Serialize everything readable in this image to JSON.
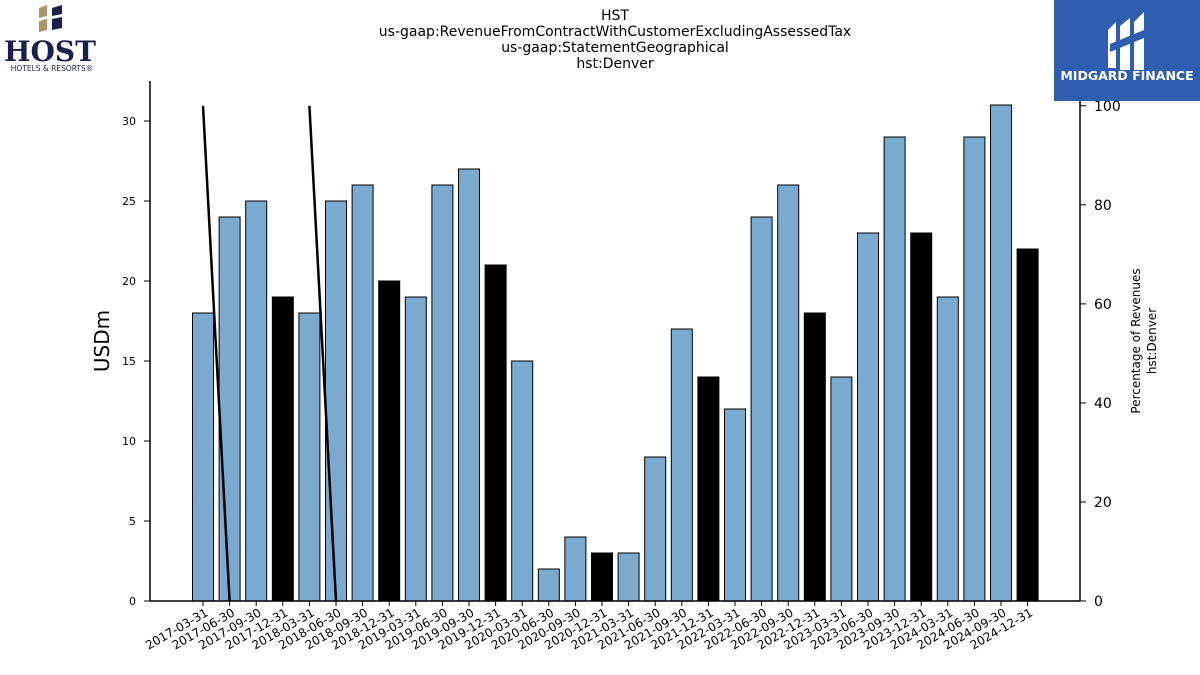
{
  "titles": [
    "HST",
    "us-gaap:RevenueFromContractWithCustomerExcludingAssessedTax",
    "us-gaap:StatementGeographical",
    "hst:Denver"
  ],
  "logos": {
    "left": {
      "name": "HOST",
      "sub": "HOTELS & RESORTS®"
    },
    "right": {
      "name": "MIDGARD FINANCE",
      "color": "#2f5eb0"
    }
  },
  "colors": {
    "bar_regular": "#7aaad0",
    "bar_q4": "#000000",
    "line": "#000000"
  },
  "chart_data": {
    "type": "bar",
    "categories": [
      "2017-03-31",
      "2017-06-30",
      "2017-09-30",
      "2017-12-31",
      "2018-03-31",
      "2018-06-30",
      "2018-09-30",
      "2018-12-31",
      "2019-03-31",
      "2019-06-30",
      "2019-09-30",
      "2019-12-31",
      "2020-03-31",
      "2020-06-30",
      "2020-09-30",
      "2020-12-31",
      "2021-03-31",
      "2021-06-30",
      "2021-09-30",
      "2021-12-31",
      "2022-03-31",
      "2022-06-30",
      "2022-09-30",
      "2022-12-31",
      "2023-03-31",
      "2023-06-30",
      "2023-09-30",
      "2023-12-31",
      "2024-03-31",
      "2024-06-30",
      "2024-09-30",
      "2024-12-31"
    ],
    "values": [
      18,
      24,
      25,
      19,
      18,
      25,
      26,
      20,
      19,
      26,
      27,
      21,
      15,
      2,
      4,
      3,
      3,
      9,
      17,
      14,
      12,
      24,
      26,
      18,
      14,
      23,
      29,
      23,
      19,
      29,
      31,
      22
    ],
    "highlight": [
      false,
      false,
      false,
      true,
      false,
      false,
      false,
      true,
      false,
      false,
      false,
      true,
      false,
      false,
      false,
      true,
      false,
      false,
      false,
      true,
      false,
      false,
      false,
      true,
      false,
      false,
      false,
      true,
      false,
      false,
      false,
      true
    ],
    "ylabel": "USDm",
    "ylim": [
      0,
      32.5
    ],
    "yticks": [
      0,
      5,
      10,
      15,
      20,
      25,
      30
    ],
    "secondary_axis": {
      "label_lines": [
        "Percentage of Revenues",
        "hst:Denver"
      ],
      "ylim": [
        0,
        105
      ],
      "yticks": [
        0,
        20,
        40,
        60,
        80,
        100
      ],
      "line_values": [
        100,
        0,
        null,
        null,
        100,
        0,
        null,
        null,
        null,
        null,
        null,
        null,
        null,
        null,
        null,
        null,
        null,
        null,
        null,
        null,
        null,
        null,
        null,
        null,
        null,
        null,
        null,
        null,
        null,
        null,
        null,
        null
      ]
    }
  }
}
